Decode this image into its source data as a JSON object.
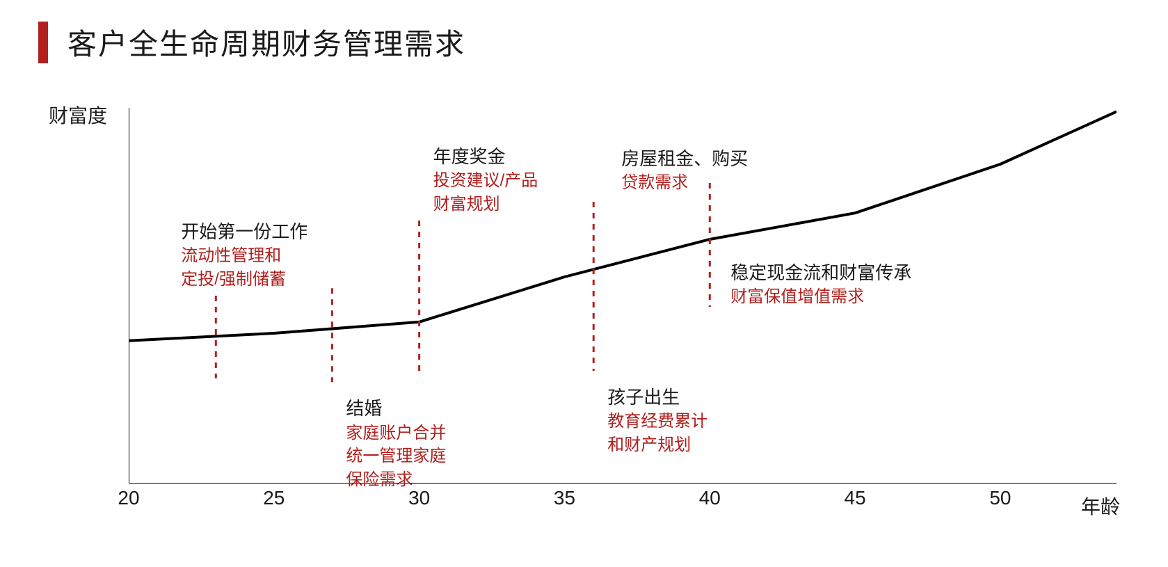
{
  "title": "客户全生命周期财务管理需求",
  "colors": {
    "accent": "#b0201e",
    "text": "#1a1a1a",
    "subtext": "#b0201e",
    "axis": "#000000",
    "curve": "#000000",
    "dash": "#b0201e",
    "background": "#ffffff"
  },
  "typography": {
    "title_fontsize": 42,
    "axis_label_fontsize": 28,
    "tick_fontsize": 28,
    "anno_title_fontsize": 26,
    "anno_sub_fontsize": 24
  },
  "chart": {
    "type": "line",
    "y_label": "财富度",
    "x_label": "年龄",
    "x_ticks": [
      20,
      25,
      30,
      35,
      40,
      45,
      50
    ],
    "x_domain": [
      20,
      54
    ],
    "y_domain": [
      0,
      100
    ],
    "curve_points": [
      {
        "x": 20,
        "y": 38
      },
      {
        "x": 25,
        "y": 40
      },
      {
        "x": 30,
        "y": 43
      },
      {
        "x": 35,
        "y": 55
      },
      {
        "x": 40,
        "y": 65
      },
      {
        "x": 45,
        "y": 72
      },
      {
        "x": 50,
        "y": 85
      },
      {
        "x": 54,
        "y": 99
      }
    ],
    "curve_width": 4,
    "axis_width": 2,
    "dash_width": 3,
    "dash_pattern": "8,8"
  },
  "events": [
    {
      "x": 23,
      "dash_from_y": 28,
      "dash_to_y": 50,
      "label_pos": "above",
      "title": "开始第一份工作",
      "sub": [
        "流动性管理和",
        "定投/强制储蓄"
      ],
      "label_x_offset": -50,
      "label_y_offset": -110
    },
    {
      "x": 27,
      "dash_from_y": 27,
      "dash_to_y": 52,
      "label_pos": "below",
      "title": "结婚",
      "sub": [
        "家庭账户合并",
        "统一管理家庭",
        "保险需求"
      ],
      "label_x_offset": 20,
      "label_y_offset": 20
    },
    {
      "x": 30,
      "dash_from_y": 30,
      "dash_to_y": 70,
      "label_pos": "above",
      "title": "年度奖金",
      "sub": [
        "投资建议/产品",
        "财富规划"
      ],
      "label_x_offset": 20,
      "label_y_offset": -110,
      "title_above_all": true
    },
    {
      "x": 36,
      "dash_from_y": 30,
      "dash_to_y": 75,
      "label_pos": "below",
      "title": "孩子出生",
      "sub": [
        "教育经费累计",
        "和财产规划"
      ],
      "label_x_offset": 20,
      "label_y_offset": 20,
      "top_title": "房屋租金、购买",
      "top_sub": [
        "贷款需求"
      ],
      "top_x_offset": 40,
      "top_y_offset": -80
    },
    {
      "x": 40,
      "dash_from_y": 47,
      "dash_to_y": 80,
      "label_pos": "below-right",
      "title": "稳定现金流和财富传承",
      "sub": [
        "财富保值增值需求"
      ],
      "label_x_offset": 30,
      "label_y_offset": 30
    }
  ]
}
